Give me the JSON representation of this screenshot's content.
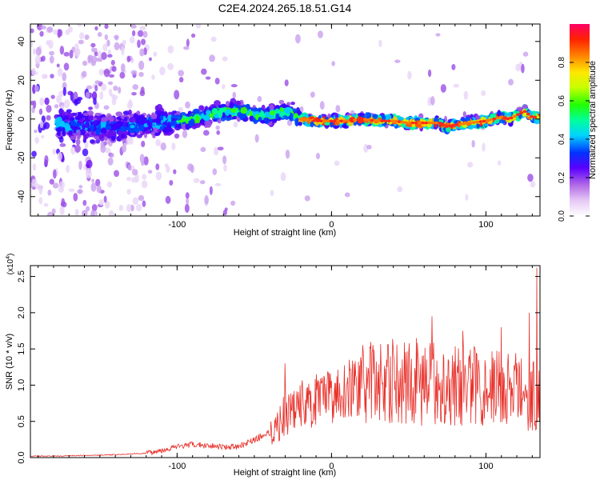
{
  "title": "C2E4.2024.265.18.51.G14",
  "chart_data": [
    {
      "type": "heatmap",
      "xlabel": "Height of straight line (km)",
      "ylabel": "Frequency (Hz)",
      "xlim": [
        -195,
        135
      ],
      "ylim": [
        -50,
        49
      ],
      "xticks": [
        -100,
        0,
        100
      ],
      "yticks": [
        -40,
        -20,
        0,
        20,
        40
      ],
      "colorbar": {
        "label": "Normalized spectral amplitude",
        "range": [
          0,
          1
        ],
        "ticks": [
          0.0,
          0.2,
          0.4,
          0.6,
          0.8
        ],
        "tick_labels": [
          "0.0",
          "0.2",
          "0.4",
          "0.6",
          "0.8"
        ]
      },
      "ridge": {
        "x": [
          -175,
          -160,
          -140,
          -120,
          -100,
          -90,
          -80,
          -70,
          -60,
          -50,
          -40,
          -30,
          -25,
          -20,
          -10,
          0,
          10,
          20,
          30,
          40,
          50,
          60,
          70,
          75,
          80,
          90,
          100,
          110,
          115,
          120,
          125,
          130
        ],
        "y": [
          -3,
          -4,
          -4,
          -3,
          -1,
          0,
          2,
          4,
          4,
          2,
          2,
          4,
          3,
          0,
          -1,
          -1,
          -1,
          0,
          -1,
          -1,
          -2,
          -2,
          -2,
          -4,
          -3,
          -2,
          -1,
          1,
          0,
          2,
          4,
          1
        ]
      }
    },
    {
      "type": "line",
      "xlabel": "Height of straight line (km)",
      "ylabel": "SNR (10 * v/v)",
      "y_multiplier": "(x10",
      "y_multiplier_exp": "4",
      "xlim": [
        -195,
        135
      ],
      "ylim": [
        0,
        2.65
      ],
      "xticks": [
        -100,
        0,
        100
      ],
      "yticks": [
        0.0,
        0.5,
        1.0,
        1.5,
        2.0,
        2.5
      ],
      "ytick_labels": [
        "0.0",
        "0.5",
        "1.0",
        "1.5",
        "2.0",
        "2.5"
      ],
      "color": "#e8302a",
      "series": [
        {
          "x": [
            -195,
            -180,
            -160,
            -140,
            -120,
            -110,
            -100,
            -90,
            -80,
            -70,
            -60,
            -50,
            -40,
            -35,
            -30,
            -25,
            -20,
            -15,
            -10,
            -5,
            0,
            10,
            20,
            30,
            40,
            50,
            60,
            70,
            80,
            90,
            100,
            110,
            120,
            125,
            130
          ],
          "y": [
            0.02,
            0.02,
            0.03,
            0.04,
            0.06,
            0.1,
            0.15,
            0.18,
            0.17,
            0.15,
            0.15,
            0.25,
            0.35,
            0.45,
            0.6,
            0.7,
            0.75,
            0.72,
            0.75,
            0.8,
            0.85,
            0.95,
            1.0,
            1.05,
            1.05,
            1.05,
            1.0,
            1.05,
            1.0,
            1.0,
            1.0,
            0.95,
            0.95,
            0.9,
            0.85
          ],
          "spikes": [
            [
              -30,
              1.3
            ],
            [
              -10,
              1.15
            ],
            [
              40,
              1.55
            ],
            [
              55,
              1.65
            ],
            [
              65,
              1.95
            ],
            [
              85,
              1.75
            ],
            [
              110,
              1.8
            ],
            [
              128,
              2.0
            ],
            [
              133,
              2.62
            ]
          ]
        }
      ]
    }
  ]
}
